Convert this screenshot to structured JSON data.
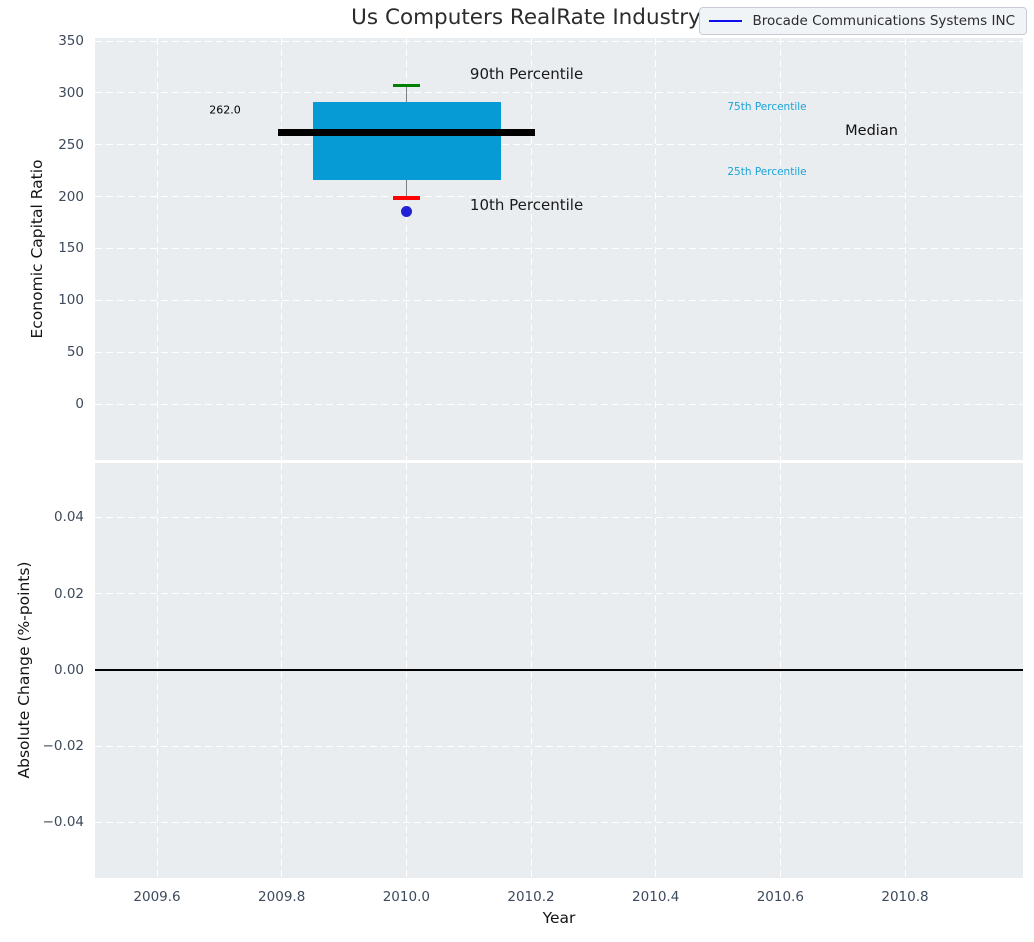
{
  "figure": {
    "title": "Us Computers RealRate Industry Index",
    "bg_color": "#ffffff",
    "axes_bg_color": "#e9edf0",
    "grid_color": "#ffffff",
    "tick_color": "#3d4a5c"
  },
  "legend": {
    "label": "Brocade Communications Systems INC",
    "line_color": "#0d0df0"
  },
  "chart_data": [
    {
      "type": "boxplot",
      "title": "Us Computers RealRate Industry Index",
      "ylabel": "Economic Capital Ratio",
      "series_label": "Brocade Communications Systems INC",
      "xlim": [
        2009.5005,
        2010.9893
      ],
      "ylim": [
        -54,
        353
      ],
      "grid": "white-dashed",
      "x_tick_labels_visible": false,
      "xticks": [
        {
          "v": 2009.6,
          "label": "2009.6"
        },
        {
          "v": 2009.8,
          "label": "2009.8"
        },
        {
          "v": 2010.0,
          "label": "2010.0"
        },
        {
          "v": 2010.2,
          "label": "2010.2"
        },
        {
          "v": 2010.4,
          "label": "2010.4"
        },
        {
          "v": 2010.6,
          "label": "2010.6"
        },
        {
          "v": 2010.8,
          "label": "2010.8"
        }
      ],
      "yticks": [
        {
          "v": 350,
          "label": "350"
        },
        {
          "v": 300,
          "label": "300"
        },
        {
          "v": 250,
          "label": "250"
        },
        {
          "v": 200,
          "label": "200"
        },
        {
          "v": 150,
          "label": "150"
        },
        {
          "v": 100,
          "label": "100"
        },
        {
          "v": 50,
          "label": "50"
        },
        {
          "v": 0,
          "label": "0"
        }
      ],
      "box": {
        "x_center": 2010.0,
        "x_left": 2009.85,
        "x_right": 2010.152,
        "q1": 216,
        "q3": 291,
        "median": 262.0,
        "median_x_left": 2009.794,
        "median_x_right": 2010.206,
        "whisker_high": 307,
        "whisker_low": 199,
        "outlier": {
          "x": 2010.0,
          "y": 186
        },
        "colors": {
          "box_fill": "#069bd5",
          "median": "#000000",
          "whisker": "#7f7f7f",
          "cap_high": "#008000",
          "cap_low": "#ff0000",
          "outlier": "#2121d8"
        }
      },
      "annotations": [
        {
          "text": "262.0",
          "x": 2009.709,
          "y": 283.5,
          "size": 11,
          "color": "#000000",
          "anchor": "center"
        },
        {
          "text": "90th Percentile",
          "x": 2010.102,
          "y": 318,
          "size": 15,
          "color": "#1a1a1a",
          "anchor": "left"
        },
        {
          "text": "10th Percentile",
          "x": 2010.102,
          "y": 192,
          "size": 15,
          "color": "#1a1a1a",
          "anchor": "left"
        },
        {
          "text": "75th Percentile",
          "x": 2010.515,
          "y": 286,
          "size": 10.5,
          "color": "#1ba3d6",
          "anchor": "left"
        },
        {
          "text": "Median",
          "x": 2010.704,
          "y": 263,
          "size": 14.5,
          "color": "#111111",
          "anchor": "left"
        },
        {
          "text": "25th Percentile",
          "x": 2010.515,
          "y": 224,
          "size": 10.5,
          "color": "#1ba3d6",
          "anchor": "left"
        }
      ]
    },
    {
      "type": "line",
      "ylabel": "Absolute Change (%-points)",
      "xlabel": "Year",
      "xlim": [
        2009.5005,
        2010.9893
      ],
      "ylim": [
        -0.0546,
        0.0543
      ],
      "grid": "white-dashed",
      "x_tick_labels_visible": true,
      "xticks": [
        {
          "v": 2009.6,
          "label": "2009.6"
        },
        {
          "v": 2009.8,
          "label": "2009.8"
        },
        {
          "v": 2010.0,
          "label": "2010.0"
        },
        {
          "v": 2010.2,
          "label": "2010.2"
        },
        {
          "v": 2010.4,
          "label": "2010.4"
        },
        {
          "v": 2010.6,
          "label": "2010.6"
        },
        {
          "v": 2010.8,
          "label": "2010.8"
        }
      ],
      "yticks": [
        {
          "v": 0.04,
          "label": "0.04"
        },
        {
          "v": 0.02,
          "label": "0.02"
        },
        {
          "v": 0.0,
          "label": "0.00"
        },
        {
          "v": -0.02,
          "label": "−0.02"
        },
        {
          "v": -0.04,
          "label": "−0.04"
        }
      ],
      "zero_line": {
        "y": 0.0,
        "color": "#000000"
      },
      "series": []
    }
  ]
}
